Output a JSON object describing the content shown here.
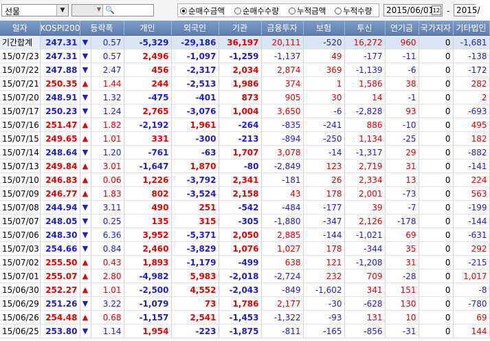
{
  "toolbar": {
    "product_select": "선물",
    "radio_options": [
      {
        "label": "순매수금액",
        "selected": true
      },
      {
        "label": "순매수수량",
        "selected": false
      },
      {
        "label": "누적금액",
        "selected": false
      },
      {
        "label": "누적수량",
        "selected": false
      }
    ],
    "start_date": "2015/06/01",
    "date_separator": "-",
    "end_date": "2015/"
  },
  "table": {
    "headers": [
      "일자",
      "KOSPI200",
      "등락폭",
      "개인",
      "외국인",
      "기관",
      "금융투자",
      "보험",
      "투신",
      "연기금",
      "국가지자",
      "기타법인"
    ],
    "rows": [
      {
        "date": "기간합계",
        "kospi": "247.31",
        "dir": "down",
        "chg": "0.57",
        "vals": [
          "-5,329",
          "-29,186",
          "36,197",
          "20,111",
          "-520",
          "16,272",
          "960",
          "0",
          "-1,681"
        ]
      },
      {
        "date": "15/07/23",
        "kospi": "247.31",
        "dir": "down",
        "chg": "0.57",
        "vals": [
          "2,496",
          "-1,097",
          "-1,259",
          "-1,137",
          "49",
          "-177",
          "-11",
          "0",
          "-138"
        ]
      },
      {
        "date": "15/07/22",
        "kospi": "247.88",
        "dir": "down",
        "chg": "2.47",
        "vals": [
          "456",
          "-2,317",
          "2,034",
          "2,874",
          "369",
          "-1,139",
          "-6",
          "0",
          "-172"
        ]
      },
      {
        "date": "15/07/21",
        "kospi": "250.35",
        "dir": "up",
        "chg": "1.44",
        "vals": [
          "244",
          "-2,513",
          "1,986",
          "374",
          "1",
          "1,586",
          "38",
          "0",
          "282"
        ]
      },
      {
        "date": "15/07/20",
        "kospi": "248.91",
        "dir": "down",
        "chg": "1.32",
        "vals": [
          "-475",
          "-401",
          "873",
          "905",
          "30",
          "14",
          "-1",
          "0",
          "2"
        ]
      },
      {
        "date": "15/07/17",
        "kospi": "250.23",
        "dir": "down",
        "chg": "1.24",
        "vals": [
          "2,765",
          "-3,076",
          "1,004",
          "3,650",
          "-6",
          "-2,828",
          "93",
          "0",
          "-693"
        ]
      },
      {
        "date": "15/07/16",
        "kospi": "251.47",
        "dir": "up",
        "chg": "1.82",
        "vals": [
          "-2,192",
          "1,961",
          "-264",
          "-835",
          "-241",
          "886",
          "-10",
          "0",
          "495"
        ]
      },
      {
        "date": "15/07/15",
        "kospi": "249.65",
        "dir": "up",
        "chg": "1.01",
        "vals": [
          "331",
          "-300",
          "-213",
          "-894",
          "-250",
          "1,134",
          "-25",
          "0",
          "182"
        ]
      },
      {
        "date": "15/07/14",
        "kospi": "248.64",
        "dir": "down",
        "chg": "1.20",
        "vals": [
          "-761",
          "-63",
          "1,707",
          "3,078",
          "-14",
          "-1,317",
          "29",
          "0",
          "-882"
        ]
      },
      {
        "date": "15/07/13",
        "kospi": "249.84",
        "dir": "up",
        "chg": "3.01",
        "vals": [
          "-1,647",
          "1,870",
          "-80",
          "-2,849",
          "123",
          "2,719",
          "31",
          "0",
          "-141"
        ]
      },
      {
        "date": "15/07/10",
        "kospi": "246.83",
        "dir": "up",
        "chg": "0.06",
        "vals": [
          "1,226",
          "-3,792",
          "2,341",
          "-181",
          "26",
          "2,334",
          "13",
          "0",
          "224"
        ]
      },
      {
        "date": "15/07/09",
        "kospi": "246.77",
        "dir": "up",
        "chg": "1.83",
        "vals": [
          "802",
          "-3,524",
          "2,158",
          "43",
          "178",
          "2,001",
          "-73",
          "0",
          "563"
        ]
      },
      {
        "date": "15/07/08",
        "kospi": "244.94",
        "dir": "down",
        "chg": "3.11",
        "vals": [
          "490",
          "251",
          "-542",
          "-484",
          "-177",
          "39",
          "-7",
          "0",
          "-199"
        ]
      },
      {
        "date": "15/07/07",
        "kospi": "248.05",
        "dir": "down",
        "chg": "0.25",
        "vals": [
          "135",
          "315",
          "-305",
          "-1,880",
          "-347",
          "2,126",
          "-178",
          "0",
          "-144"
        ]
      },
      {
        "date": "15/07/06",
        "kospi": "248.30",
        "dir": "down",
        "chg": "6.36",
        "vals": [
          "3,952",
          "-5,371",
          "2,050",
          "2,885",
          "-144",
          "-1,021",
          "69",
          "0",
          "-631"
        ]
      },
      {
        "date": "15/07/03",
        "kospi": "254.66",
        "dir": "down",
        "chg": "0.84",
        "vals": [
          "2,460",
          "-3,829",
          "1,076",
          "1,027",
          "178",
          "-344",
          "35",
          "0",
          "292"
        ]
      },
      {
        "date": "15/07/02",
        "kospi": "255.50",
        "dir": "up",
        "chg": "0.43",
        "vals": [
          "1,893",
          "-1,179",
          "-499",
          "638",
          "121",
          "-1,208",
          "31",
          "0",
          "-215"
        ]
      },
      {
        "date": "15/07/01",
        "kospi": "255.07",
        "dir": "up",
        "chg": "2.80",
        "vals": [
          "-4,982",
          "5,983",
          "-2,018",
          "-2,724",
          "232",
          "709",
          "-28",
          "0",
          "1,017"
        ]
      },
      {
        "date": "15/06/30",
        "kospi": "252.27",
        "dir": "up",
        "chg": "1.01",
        "vals": [
          "-2,500",
          "4,552",
          "-2,043",
          "-849",
          "-1,602",
          "341",
          "151",
          "0",
          "-8"
        ]
      },
      {
        "date": "15/06/29",
        "kospi": "251.26",
        "dir": "down",
        "chg": "3.22",
        "vals": [
          "-1,079",
          "73",
          "1,786",
          "2,177",
          "-30",
          "-628",
          "130",
          "0",
          "-780"
        ]
      },
      {
        "date": "15/06/26",
        "kospi": "254.48",
        "dir": "up",
        "chg": "0.68",
        "vals": [
          "-1,157",
          "2,541",
          "-1,453",
          "-1,322",
          "-93",
          "131",
          "10",
          "0",
          "69"
        ]
      },
      {
        "date": "15/06/25",
        "kospi": "253.80",
        "dir": "down",
        "chg": "1.14",
        "vals": [
          "1,954",
          "-223",
          "-1,875",
          "-811",
          "-165",
          "-856",
          "-31",
          "0",
          "144"
        ]
      }
    ]
  },
  "colors": {
    "positive": "#e00000",
    "negative": "#1e1ec8",
    "header_bg": "#6b8bbb"
  }
}
